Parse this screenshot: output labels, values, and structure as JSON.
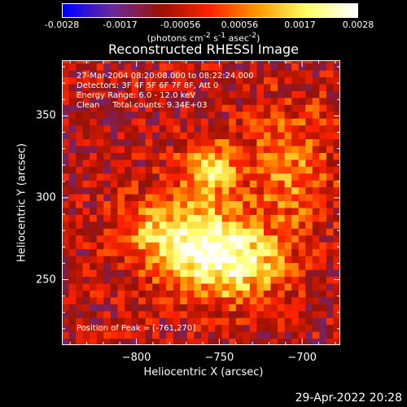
{
  "colorbar": {
    "ticks": [
      "-0.0028",
      "-0.0017",
      "-0.00056",
      "0.00056",
      "0.0017",
      "0.0028"
    ],
    "units_html": "(photons cm<sup>-2</sup> s<sup>-1</sup> asec<sup>-2</sup>)"
  },
  "chart_data": {
    "type": "heatmap",
    "title": "Reconstructed RHESSI Image",
    "xlabel": "Heliocentric X (arcsec)",
    "ylabel": "Heliocentric Y (arcsec)",
    "xlim": [
      -845,
      -677
    ],
    "ylim": [
      210,
      384
    ],
    "xticks": [
      -800,
      -750,
      -700
    ],
    "xtick_labels": [
      "−800",
      "−750",
      "−700"
    ],
    "yticks": [
      250,
      300,
      350
    ],
    "ytick_labels": [
      "250",
      "300",
      "350"
    ],
    "color_range": [
      -0.0028,
      0.0028
    ],
    "colormap": [
      "#0000ff",
      "#6a2a9a",
      "#9a1200",
      "#ff2200",
      "#ff9a00",
      "#ffff66",
      "#ffffff"
    ],
    "sources": [
      {
        "x": -761,
        "y": 270,
        "peak": 0.0028,
        "sx": 22,
        "sy": 18
      },
      {
        "x": -757,
        "y": 318,
        "peak": 0.0024,
        "sx": 12,
        "sy": 12
      },
      {
        "x": -735,
        "y": 258,
        "peak": 0.0018,
        "sx": 18,
        "sy": 16
      },
      {
        "x": -708,
        "y": 318,
        "peak": 0.0014,
        "sx": 18,
        "sy": 28
      },
      {
        "x": -790,
        "y": 282,
        "peak": 0.0012,
        "sx": 16,
        "sy": 14
      }
    ],
    "annotations": [
      "27-Mar-2004 08:20:08.000 to 08:22:24.000",
      "Detectors: 3F 4F 5F 6F 7F 8F, Att 0",
      "Energy Range: 6.0 - 12.0 keV",
      "Clean     Total counts: 9.34E+03"
    ],
    "peak_text": "Position of Peak = [-761,270]"
  },
  "datestamp": "29-Apr-2022 20:28"
}
